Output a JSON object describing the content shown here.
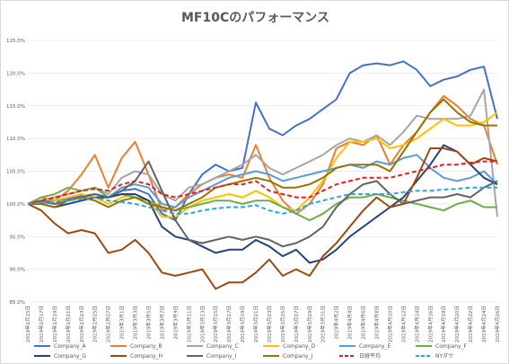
{
  "chart_data": {
    "type": "line",
    "title": "MF10Cのパフォーマンス",
    "xlabel": "",
    "ylabel": "",
    "ylim": [
      85,
      125
    ],
    "yticks": [
      85,
      90,
      95,
      100,
      105,
      110,
      115,
      120,
      125
    ],
    "ytick_format": "percent_1dp",
    "grid": true,
    "legend_position": "bottom",
    "x": [
      "2019年2月15日",
      "2019年2月17日",
      "2019年2月19日",
      "2019年2月21日",
      "2019年2月23日",
      "2019年2月25日",
      "2019年2月27日",
      "2019年3月1日",
      "2019年3月3日",
      "2019年3月5日",
      "2019年3月7日",
      "2019年3月9日",
      "2019年3月11日",
      "2019年3月13日",
      "2019年3月15日",
      "2019年3月17日",
      "2019年3月19日",
      "2019年3月21日",
      "2019年3月23日",
      "2019年3月25日",
      "2019年3月27日",
      "2019年3月29日",
      "2019年3月31日",
      "2019年4月2日",
      "2019年4月4日",
      "2019年4月6日",
      "2019年4月8日",
      "2019年4月10日",
      "2019年4月12日",
      "2019年4月14日",
      "2019年4月16日",
      "2019年4月18日",
      "2019年4月20日",
      "2019年4月22日",
      "2019年4月24日",
      "2019年4月26日"
    ],
    "series": [
      {
        "name": "Company_A",
        "color": "#4472C4",
        "dashed": false,
        "values": [
          100,
          100.3,
          100.5,
          100.8,
          101.2,
          101.5,
          101.0,
          102.0,
          102.3,
          101.5,
          98.5,
          97.5,
          101.5,
          104.5,
          106.0,
          105.0,
          105.5,
          115.5,
          111.5,
          110.5,
          112.0,
          113.0,
          114.5,
          116.0,
          120.0,
          121.2,
          121.5,
          121.2,
          121.8,
          120.5,
          118.0,
          119.0,
          119.5,
          120.5,
          121.0,
          113.0
        ]
      },
      {
        "name": "Company_B",
        "color": "#ED7D31",
        "dashed": false,
        "values": [
          100,
          101.0,
          100.5,
          102.0,
          104.5,
          107.5,
          102.5,
          107.0,
          109.5,
          104.5,
          99.0,
          99.5,
          101.5,
          103.0,
          104.0,
          104.5,
          104.0,
          109.0,
          104.0,
          100.5,
          98.5,
          100.0,
          103.0,
          108.5,
          109.5,
          109.0,
          110.5,
          106.0,
          109.0,
          111.0,
          114.0,
          116.5,
          115.0,
          113.0,
          112.0,
          106.0
        ]
      },
      {
        "name": "Company_C",
        "color": "#A5A5A5",
        "dashed": false,
        "values": [
          100,
          100.5,
          101.0,
          101.5,
          102.0,
          102.5,
          101.5,
          104.0,
          105.0,
          104.5,
          101.5,
          100.5,
          102.5,
          103.0,
          104.0,
          105.0,
          106.0,
          107.5,
          105.5,
          104.5,
          105.5,
          106.5,
          107.5,
          109.0,
          110.0,
          109.5,
          110.5,
          109.0,
          111.0,
          113.5,
          113.0,
          113.0,
          113.0,
          113.5,
          117.5,
          98.0
        ]
      },
      {
        "name": "Company_D",
        "color": "#FFC000",
        "dashed": false,
        "values": [
          100,
          100.0,
          100.5,
          101.0,
          101.5,
          101.0,
          100.0,
          101.0,
          101.5,
          100.5,
          98.0,
          98.0,
          99.5,
          100.5,
          101.0,
          101.5,
          101.0,
          102.0,
          101.0,
          99.5,
          99.0,
          101.0,
          103.5,
          107.0,
          109.5,
          109.5,
          110.0,
          108.5,
          109.0,
          110.0,
          111.5,
          113.0,
          112.0,
          112.0,
          112.5,
          114.0
        ]
      },
      {
        "name": "Company_E",
        "color": "#5B9BD5",
        "dashed": false,
        "values": [
          100,
          100.3,
          100.0,
          100.5,
          101.0,
          101.5,
          101.0,
          102.5,
          103.0,
          102.5,
          100.0,
          99.5,
          101.0,
          102.0,
          103.0,
          104.0,
          104.5,
          105.0,
          104.5,
          103.5,
          104.0,
          104.5,
          105.0,
          105.5,
          106.0,
          105.5,
          106.5,
          106.0,
          107.0,
          107.5,
          105.5,
          104.0,
          103.5,
          104.0,
          105.0,
          103.0
        ]
      },
      {
        "name": "Company_F",
        "color": "#70AD47",
        "dashed": false,
        "values": [
          100,
          101.0,
          101.5,
          102.5,
          102.0,
          102.5,
          101.0,
          101.5,
          101.0,
          100.5,
          99.5,
          99.0,
          99.5,
          100.0,
          100.5,
          100.5,
          100.0,
          100.5,
          100.5,
          99.5,
          98.5,
          97.5,
          98.5,
          100.0,
          101.0,
          101.0,
          101.5,
          101.0,
          100.5,
          100.0,
          99.5,
          99.0,
          100.0,
          100.5,
          99.5,
          99.5
        ]
      },
      {
        "name": "Company_G",
        "color": "#264478",
        "dashed": false,
        "values": [
          100,
          100.0,
          99.5,
          100.0,
          100.5,
          101.0,
          101.0,
          101.5,
          101.5,
          100.5,
          96.5,
          95.0,
          94.5,
          93.5,
          92.5,
          93.0,
          93.0,
          94.5,
          93.5,
          92.0,
          93.0,
          91.0,
          91.5,
          93.0,
          95.0,
          96.5,
          98.0,
          99.5,
          101.0,
          103.5,
          106.0,
          109.0,
          108.0,
          106.0,
          104.0,
          103.0
        ]
      },
      {
        "name": "Company_H",
        "color": "#9E480E",
        "dashed": false,
        "values": [
          100,
          99.0,
          97.0,
          95.5,
          96.0,
          95.5,
          92.5,
          93.0,
          94.5,
          92.5,
          89.5,
          89.0,
          89.5,
          90.0,
          87.0,
          88.0,
          88.0,
          89.5,
          91.5,
          89.0,
          90.0,
          89.0,
          92.0,
          94.0,
          96.5,
          99.0,
          101.0,
          99.5,
          100.0,
          104.0,
          108.5,
          108.5,
          108.0,
          106.0,
          107.0,
          106.5
        ]
      },
      {
        "name": "Company_I",
        "color": "#636363",
        "dashed": false,
        "values": [
          100,
          100.5,
          100.0,
          100.5,
          101.0,
          101.5,
          101.0,
          102.0,
          103.5,
          106.5,
          102.0,
          97.5,
          94.5,
          94.0,
          94.5,
          95.0,
          94.5,
          95.0,
          94.5,
          93.5,
          94.0,
          95.0,
          96.5,
          99.5,
          101.5,
          103.0,
          103.5,
          101.5,
          100.0,
          100.5,
          101.0,
          101.0,
          101.5,
          101.0,
          102.5,
          103.5
        ]
      },
      {
        "name": "Company_J",
        "color": "#997300",
        "dashed": false,
        "values": [
          100,
          100.0,
          99.5,
          100.5,
          101.0,
          100.5,
          99.5,
          100.5,
          101.0,
          100.0,
          99.5,
          99.0,
          100.0,
          101.0,
          102.5,
          103.0,
          103.5,
          104.0,
          103.5,
          102.5,
          102.5,
          103.0,
          104.0,
          105.5,
          106.0,
          106.0,
          106.0,
          105.0,
          108.0,
          111.0,
          114.0,
          116.0,
          114.0,
          112.5,
          112.0,
          112.0
        ]
      },
      {
        "name": "日経平均",
        "color": "#E02020",
        "dashed": true,
        "values": [
          100,
          100.5,
          101.0,
          101.5,
          102.0,
          102.3,
          102.0,
          103.0,
          103.5,
          103.0,
          101.5,
          101.0,
          101.5,
          102.0,
          102.5,
          103.0,
          103.0,
          103.5,
          102.0,
          101.5,
          101.0,
          101.0,
          102.0,
          103.0,
          103.5,
          104.0,
          104.0,
          104.0,
          104.5,
          105.0,
          105.5,
          106.0,
          106.0,
          106.3,
          106.5,
          106.5
        ]
      },
      {
        "name": "NYダウ",
        "color": "#2AA7DF",
        "dashed": true,
        "values": [
          100,
          100.2,
          100.3,
          100.5,
          100.8,
          101.0,
          100.5,
          100.3,
          100.0,
          99.5,
          99.0,
          98.5,
          98.5,
          99.0,
          99.3,
          99.5,
          99.5,
          99.8,
          99.0,
          98.5,
          99.0,
          100.0,
          100.5,
          101.0,
          101.5,
          101.5,
          101.5,
          101.5,
          101.8,
          102.0,
          102.0,
          102.2,
          102.3,
          102.5,
          102.5,
          102.5
        ]
      }
    ]
  }
}
